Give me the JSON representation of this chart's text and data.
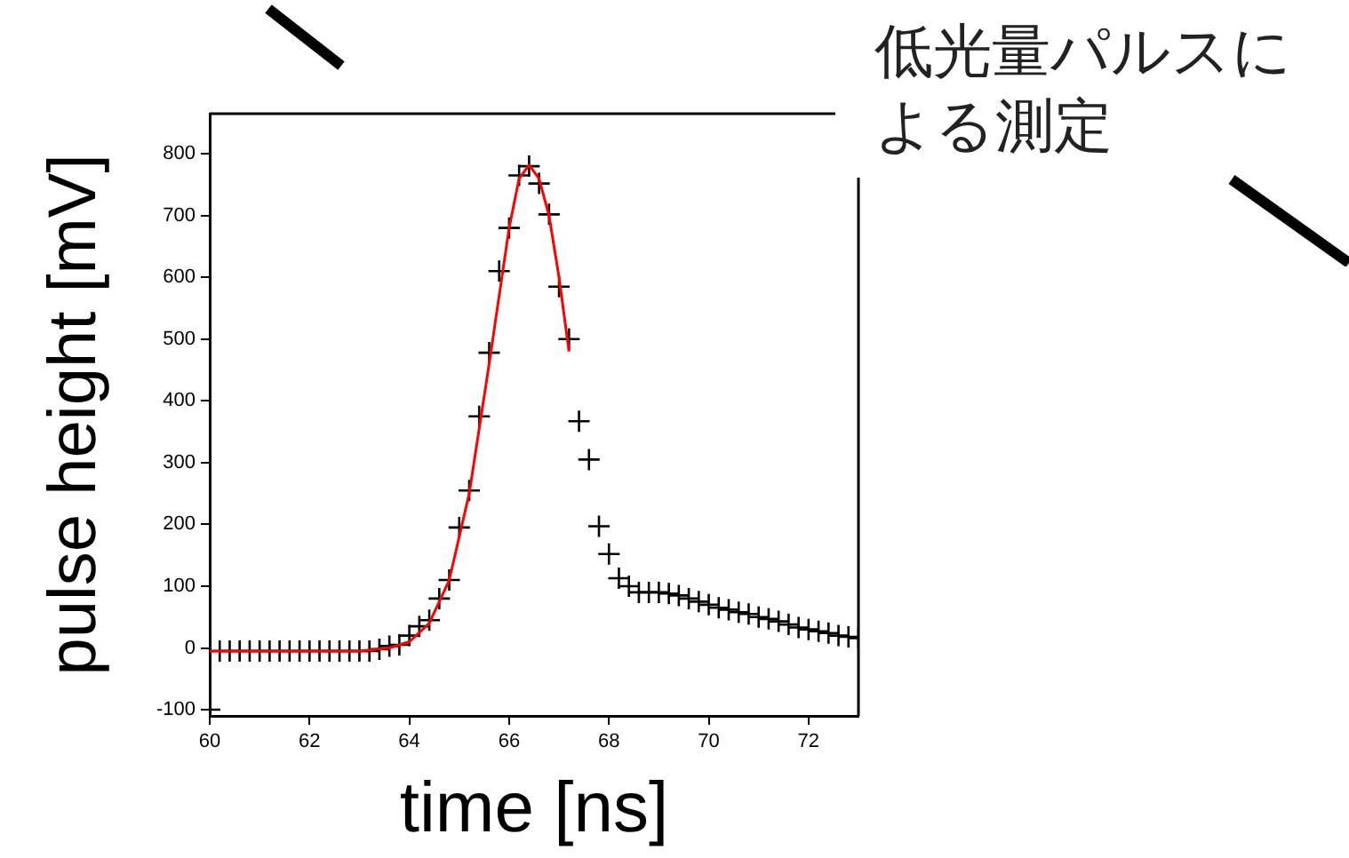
{
  "chart_data": {
    "type": "scatter",
    "xlabel": "time [ns]",
    "ylabel": "pulse height [mV]",
    "annotations": [
      "低光量パルスによる測定"
    ],
    "xlim": [
      60,
      73
    ],
    "xticks": [
      60,
      62,
      64,
      66,
      68,
      70,
      72
    ],
    "ylim": [
      -110,
      865
    ],
    "yticks": [
      -100,
      0,
      100,
      200,
      300,
      400,
      500,
      600,
      700,
      800
    ],
    "grid": false,
    "legend": false,
    "series": [
      {
        "marker": "cross",
        "color": "#000000",
        "x": [
          60,
          60.2,
          60.4,
          60.6,
          60.8,
          61,
          61.2,
          61.4,
          61.6,
          61.8,
          62,
          62.2,
          62.4,
          62.6,
          62.8,
          63,
          63.2,
          63.4,
          63.6,
          63.8,
          64,
          64.2,
          64.4,
          64.6,
          64.8,
          65,
          65.2,
          65.4,
          65.6,
          65.8,
          66,
          66.2,
          66.4,
          66.6,
          66.8,
          67,
          67.2,
          67.4,
          67.6,
          67.8,
          68,
          68.2,
          68.4,
          68.6,
          68.8,
          69,
          69.2,
          69.4,
          69.6,
          69.8,
          70,
          70.2,
          70.4,
          70.6,
          70.8,
          71,
          71.2,
          71.4,
          71.6,
          71.8,
          72,
          72.2,
          72.4,
          72.6,
          72.8,
          73
        ],
        "values": [
          -100,
          -5,
          -5,
          -5,
          -5,
          -5,
          -5,
          -5,
          -5,
          -5,
          -5,
          -5,
          -5,
          -5,
          -5,
          -5,
          -5,
          -2,
          3,
          5,
          20,
          35,
          45,
          80,
          110,
          195,
          255,
          375,
          478,
          610,
          680,
          765,
          780,
          752,
          702,
          585,
          500,
          367,
          305,
          197,
          152,
          113,
          100,
          90,
          90,
          90,
          88,
          85,
          80,
          75,
          70,
          65,
          62,
          58,
          55,
          50,
          47,
          43,
          38,
          33,
          30,
          27,
          24,
          20,
          18,
          16
        ]
      },
      {
        "type": "line",
        "marker": "none",
        "color": "#ff0000",
        "x": [
          60,
          63,
          63.6,
          64,
          64.4,
          64.8,
          65.2,
          65.6,
          66,
          66.2,
          66.4,
          66.6,
          66.8,
          67,
          67.2
        ],
        "values": [
          -5,
          -5,
          0,
          10,
          40,
          110,
          250,
          460,
          680,
          760,
          782,
          760,
          700,
          600,
          480
        ]
      }
    ]
  }
}
